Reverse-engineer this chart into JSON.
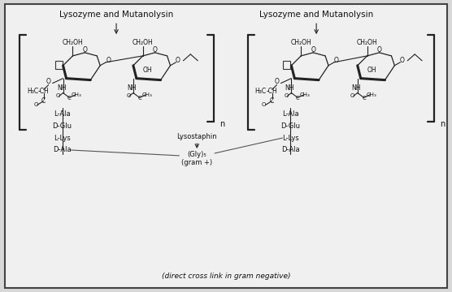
{
  "fig_width": 5.56,
  "fig_height": 3.6,
  "dpi": 100,
  "bg_color": "#d8d8d8",
  "inner_bg": "#f0f0f0",
  "border_color": "#444444",
  "text_color": "#111111",
  "title1": "Lysozyme and Mutanolysin",
  "title2": "Lysozyme and Mutanolysin",
  "footer": "(direct cross link in gram negative)",
  "left_peptide": [
    "L-Ala",
    "D-Glu",
    "L-Lys",
    "D-Ala"
  ],
  "right_peptide": [
    "L-Ala",
    "D-Glu",
    "L-Lys",
    "D-Ala"
  ],
  "gly_label": "(Gly)₅",
  "gram_label": "(gram +)",
  "lysostaphin_label": "Lysostaphin",
  "n_label": "n"
}
